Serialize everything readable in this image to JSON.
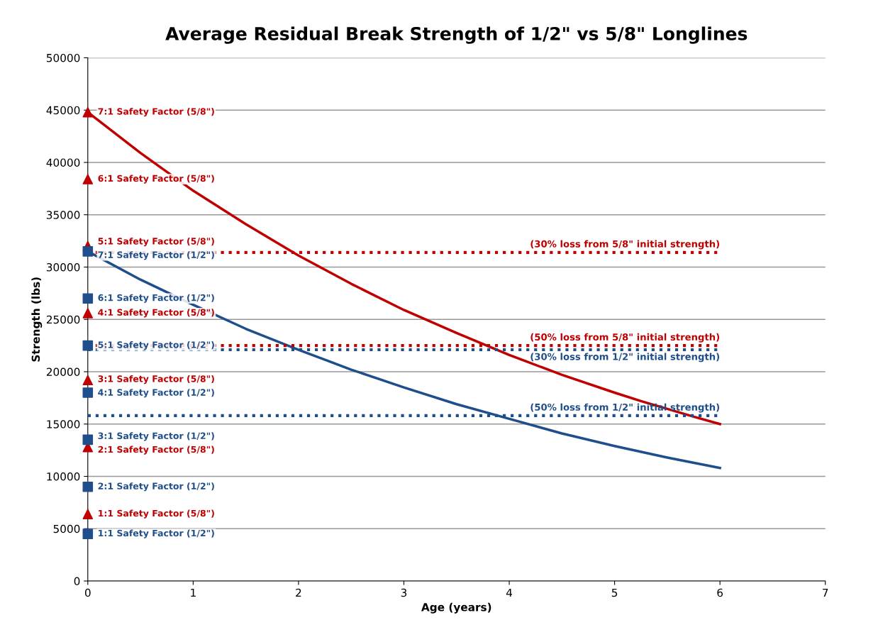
{
  "chart_data": {
    "type": "line",
    "title": "Average Residual Break Strength of 1/2\" vs 5/8\" Longlines",
    "xlabel": "Age (years)",
    "ylabel": "Strength (lbs)",
    "xlim": [
      0,
      7
    ],
    "xticks": [
      0,
      1,
      2,
      3,
      4,
      5,
      6,
      7
    ],
    "ylim": [
      0,
      50000
    ],
    "yticks": [
      0,
      5000,
      10000,
      15000,
      20000,
      25000,
      30000,
      35000,
      40000,
      45000,
      50000
    ],
    "grid": "y",
    "legend": false,
    "series": [
      {
        "color": "#c00000",
        "marker": "none",
        "line_style": "solid",
        "x": [
          0,
          0.5,
          1,
          1.5,
          2,
          2.5,
          3,
          3.5,
          4,
          4.5,
          5,
          5.25,
          5.75,
          6
        ],
        "values": [
          44800,
          40900,
          37300,
          34100,
          31100,
          28400,
          25900,
          23700,
          21600,
          19700,
          18000,
          17200,
          15700,
          15000
        ]
      },
      {
        "color": "#1f4e8c",
        "marker": "none",
        "line_style": "solid",
        "x": [
          0,
          0.5,
          1,
          1.5,
          2,
          2.5,
          3,
          3.5,
          4,
          4.5,
          5,
          5.5,
          6
        ],
        "values": [
          31500,
          28800,
          26400,
          24100,
          22100,
          20200,
          18500,
          16900,
          15500,
          14100,
          12900,
          11800,
          10800
        ]
      },
      {
        "type": "line",
        "name": "(30% loss from 5/8\" initial strength)",
        "color": "#c00000",
        "marker": "none",
        "line_style": "dotted",
        "x": [
          0,
          6
        ],
        "values": [
          31400,
          31400
        ]
      },
      {
        "type": "line",
        "name": "(50% loss from 5/8\" initial strength)",
        "color": "#c00000",
        "marker": "none",
        "line_style": "dotted",
        "x": [
          0,
          6
        ],
        "values": [
          22500,
          22500
        ]
      },
      {
        "type": "line",
        "name": "(30% loss from 1/2\" initial strength)",
        "color": "#1f4e8c",
        "marker": "none",
        "line_style": "dotted",
        "x": [
          0,
          6
        ],
        "values": [
          22100,
          22100
        ]
      },
      {
        "type": "line",
        "name": "(50% loss from 1/2\" initial strength)",
        "color": "#1f4e8c",
        "marker": "none",
        "line_style": "dotted",
        "x": [
          0,
          6
        ],
        "values": [
          15800,
          15800
        ]
      },
      {
        "type": "scatter",
        "color": "#c00000",
        "marker": "triangle",
        "x": [
          0,
          0,
          0,
          0,
          0,
          0,
          0
        ],
        "values": [
          6400,
          12800,
          19200,
          25600,
          32000,
          38400,
          44800
        ],
        "value_labels": [
          "1:1 Safety Factor (5/8\")",
          "2:1 Safety Factor (5/8\")",
          "3:1 Safety Factor (5/8\")",
          "4:1 Safety Factor (5/8\")",
          "5:1 Safety Factor (5/8\")",
          "6:1 Safety Factor (5/8\")",
          "7:1 Safety Factor (5/8\")"
        ]
      },
      {
        "type": "scatter",
        "color": "#1f4e8c",
        "marker": "square",
        "x": [
          0,
          0,
          0,
          0,
          0,
          0,
          0
        ],
        "values": [
          4500,
          9000,
          13500,
          18000,
          22500,
          27000,
          31500
        ],
        "value_labels": [
          "1:1 Safety Factor (1/2\")",
          "2:1 Safety Factor (1/2\")",
          "3:1 Safety Factor (1/2\")",
          "4:1 Safety Factor (1/2\")",
          "5:1 Safety Factor (1/2\")",
          "6:1 Safety Factor (1/2\")",
          "7:1 Safety Factor (1/2\")"
        ]
      }
    ]
  }
}
